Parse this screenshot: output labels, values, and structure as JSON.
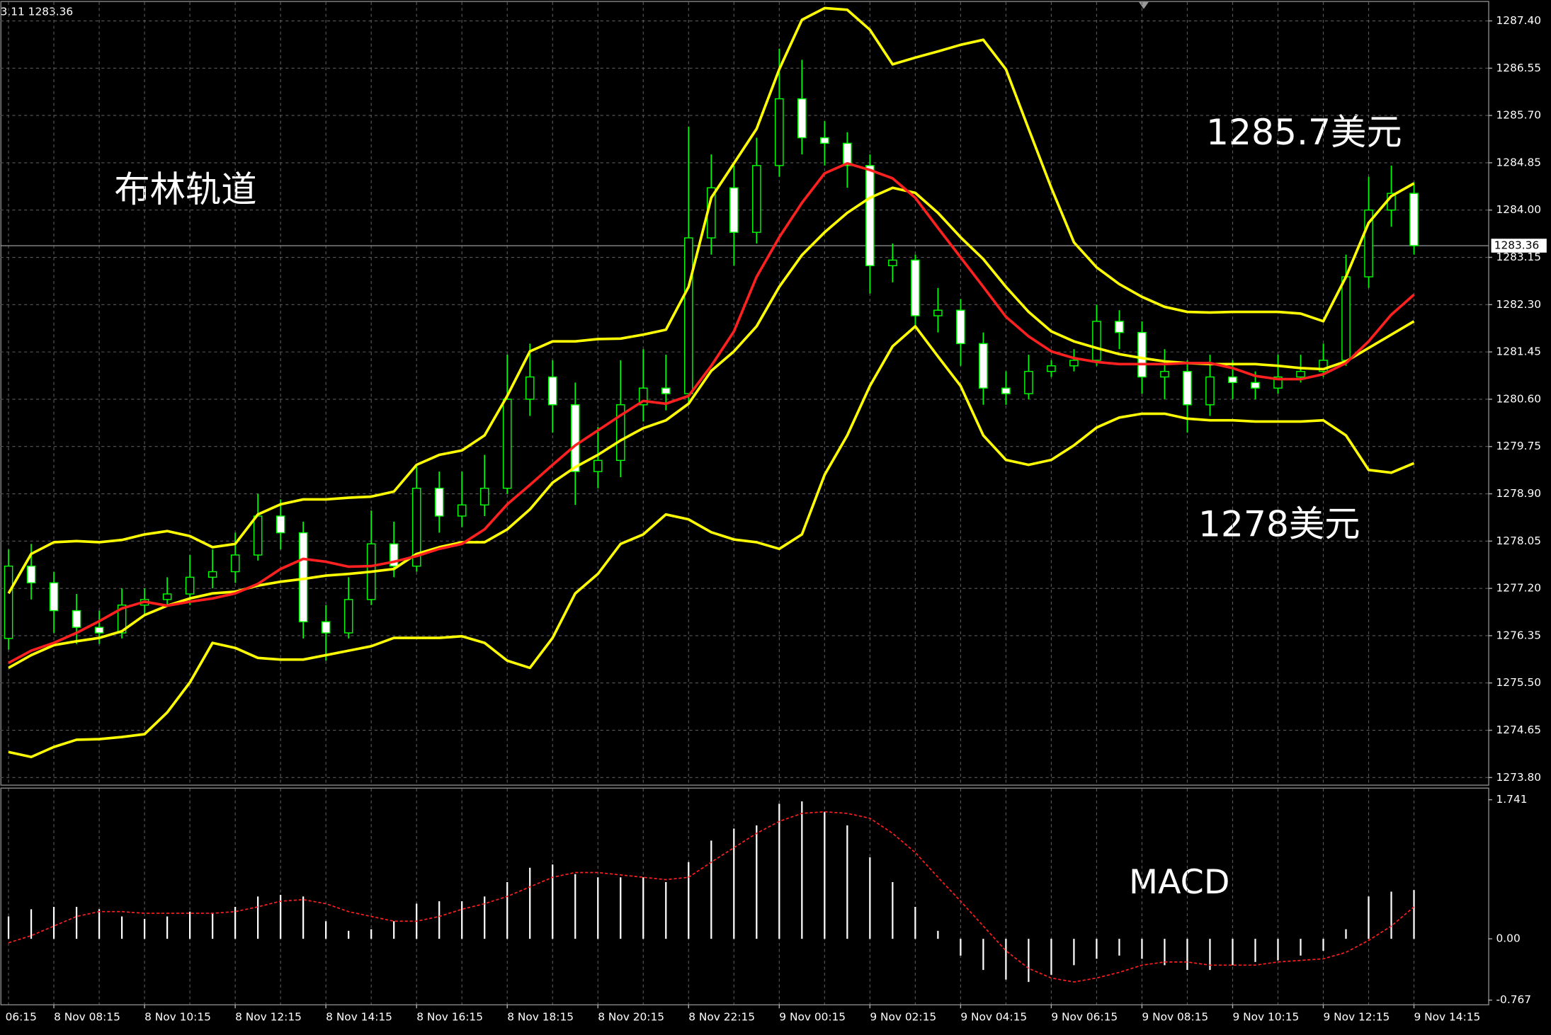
{
  "chart_data": {
    "type": "candlestick",
    "header": "3.11 1283.36",
    "x_axis_left_label": "06:15",
    "categories": [
      null,
      null,
      "8 Nov 08:15",
      null,
      null,
      null,
      "8 Nov 10:15",
      null,
      null,
      null,
      "8 Nov 12:15",
      null,
      null,
      null,
      "8 Nov 14:15",
      null,
      null,
      null,
      "8 Nov 16:15",
      null,
      null,
      null,
      "8 Nov 18:15",
      null,
      null,
      null,
      "8 Nov 20:15",
      null,
      null,
      null,
      "8 Nov 22:15",
      null,
      null,
      null,
      "9 Nov 00:15",
      null,
      null,
      null,
      "9 Nov 02:15",
      null,
      null,
      null,
      "9 Nov 04:15",
      null,
      null,
      null,
      "9 Nov 06:15",
      null,
      null,
      null,
      "9 Nov 08:15",
      null,
      null,
      null,
      "9 Nov 10:15",
      null,
      null,
      null,
      "9 Nov 12:15",
      null,
      null,
      null,
      "9 Nov 14:15"
    ],
    "open": [
      1276.3,
      1277.6,
      1277.3,
      1276.8,
      1276.5,
      1276.4,
      1276.9,
      1277.0,
      1277.1,
      1277.4,
      1277.5,
      1277.8,
      1278.5,
      1278.2,
      1276.6,
      1276.4,
      1277.0,
      1278.0,
      1277.6,
      1279.0,
      1278.5,
      1278.7,
      1279.0,
      1280.6,
      1281.0,
      1280.5,
      1279.3,
      1279.5,
      1280.5,
      1280.8,
      1280.7,
      1283.5,
      1284.4,
      1283.6,
      1284.8,
      1286.0,
      1285.3,
      1285.2,
      1284.8,
      1283.0,
      1283.1,
      1282.1,
      1282.2,
      1281.6,
      1280.8,
      1280.7,
      1281.1,
      1281.2,
      1281.3,
      1282.0,
      1281.8,
      1281.0,
      1281.1,
      1280.5,
      1281.0,
      1280.9,
      1280.8,
      1281.0,
      1281.1,
      1281.3,
      1282.8,
      1284.0,
      1284.3
    ],
    "high": [
      1277.9,
      1278.0,
      1277.5,
      1277.1,
      1276.8,
      1277.2,
      1277.2,
      1277.4,
      1277.8,
      1277.9,
      1278.2,
      1278.9,
      1278.8,
      1278.4,
      1276.9,
      1277.4,
      1278.6,
      1278.4,
      1279.4,
      1279.3,
      1279.3,
      1279.6,
      1281.4,
      1281.6,
      1281.3,
      1280.9,
      1280.1,
      1281.3,
      1281.5,
      1281.4,
      1285.5,
      1285.0,
      1284.8,
      1285.3,
      1286.9,
      1286.7,
      1285.6,
      1285.4,
      1285.0,
      1283.4,
      1283.2,
      1282.6,
      1282.4,
      1281.8,
      1281.1,
      1281.4,
      1281.3,
      1281.5,
      1282.3,
      1282.2,
      1282.0,
      1281.5,
      1281.3,
      1281.4,
      1281.3,
      1281.1,
      1281.4,
      1281.4,
      1281.6,
      1283.2,
      1284.6,
      1284.8,
      1284.5
    ],
    "low": [
      1276.1,
      1277.0,
      1276.4,
      1276.2,
      1276.2,
      1276.3,
      1276.7,
      1276.9,
      1276.9,
      1277.2,
      1277.3,
      1277.7,
      1277.9,
      1276.3,
      1275.9,
      1276.3,
      1276.9,
      1277.4,
      1277.5,
      1278.2,
      1278.3,
      1278.5,
      1278.9,
      1280.3,
      1280.0,
      1278.7,
      1279.0,
      1279.2,
      1280.2,
      1280.4,
      1280.5,
      1283.2,
      1283.0,
      1283.4,
      1284.6,
      1285.0,
      1284.8,
      1284.4,
      1282.5,
      1282.7,
      1281.9,
      1281.8,
      1281.2,
      1280.5,
      1280.5,
      1280.6,
      1281.0,
      1281.1,
      1281.2,
      1281.5,
      1280.7,
      1280.6,
      1280.0,
      1280.3,
      1280.6,
      1280.6,
      1280.7,
      1280.9,
      1281.0,
      1281.2,
      1282.6,
      1283.7,
      1283.2
    ],
    "close": [
      1277.6,
      1277.3,
      1276.8,
      1276.5,
      1276.4,
      1276.9,
      1277.0,
      1277.1,
      1277.4,
      1277.5,
      1277.8,
      1278.5,
      1278.2,
      1276.6,
      1276.4,
      1277.0,
      1278.0,
      1277.6,
      1279.0,
      1278.5,
      1278.7,
      1279.0,
      1280.6,
      1281.0,
      1280.5,
      1279.3,
      1279.5,
      1280.5,
      1280.8,
      1280.7,
      1283.5,
      1284.4,
      1283.6,
      1284.8,
      1286.0,
      1285.3,
      1285.2,
      1284.8,
      1283.0,
      1283.1,
      1282.1,
      1282.2,
      1281.6,
      1280.8,
      1280.7,
      1281.1,
      1281.2,
      1281.3,
      1282.0,
      1281.8,
      1281.0,
      1281.1,
      1280.5,
      1281.0,
      1280.9,
      1280.8,
      1281.0,
      1281.1,
      1281.3,
      1282.8,
      1284.0,
      1284.3,
      1283.36
    ],
    "up_color": "#000000",
    "down_color": "#ffffff",
    "wick_color": "#00ff00",
    "overlays": [
      {
        "color": "#ffff00",
        "values": [
          1277.11,
          1277.82,
          1278.03,
          1278.05,
          1278.03,
          1278.07,
          1278.17,
          1278.23,
          1278.14,
          1277.94,
          1278.0,
          1278.53,
          1278.71,
          1278.8,
          1278.8,
          1278.83,
          1278.85,
          1278.94,
          1279.42,
          1279.6,
          1279.68,
          1279.95,
          1280.66,
          1281.46,
          1281.64,
          1281.64,
          1281.68,
          1281.69,
          1281.76,
          1281.85,
          1282.62,
          1284.22,
          1284.84,
          1285.46,
          1286.53,
          1287.42,
          1287.63,
          1287.6,
          1287.24,
          1286.62,
          1286.74,
          1286.85,
          1286.97,
          1287.06,
          1286.53,
          1285.46,
          1284.4,
          1283.42,
          1282.97,
          1282.67,
          1282.44,
          1282.26,
          1282.17,
          1282.16,
          1282.17,
          1282.17,
          1282.17,
          1282.14,
          1282.0,
          1282.8,
          1283.77,
          1284.25,
          1284.48
        ]
      },
      {
        "color": "#ffff00",
        "values": [
          1275.77,
          1276.0,
          1276.18,
          1276.25,
          1276.31,
          1276.43,
          1276.72,
          1276.89,
          1277.02,
          1277.11,
          1277.14,
          1277.25,
          1277.32,
          1277.37,
          1277.43,
          1277.46,
          1277.5,
          1277.55,
          1277.82,
          1277.94,
          1278.03,
          1278.03,
          1278.26,
          1278.62,
          1279.1,
          1279.38,
          1279.6,
          1279.86,
          1280.08,
          1280.22,
          1280.52,
          1281.11,
          1281.46,
          1281.91,
          1282.62,
          1283.19,
          1283.6,
          1283.95,
          1284.22,
          1284.4,
          1284.31,
          1283.95,
          1283.51,
          1283.12,
          1282.62,
          1282.17,
          1281.82,
          1281.64,
          1281.52,
          1281.41,
          1281.34,
          1281.28,
          1281.25,
          1281.23,
          1281.23,
          1281.23,
          1281.2,
          1281.16,
          1281.14,
          1281.28,
          1281.52,
          1281.76,
          1282.0
        ]
      },
      {
        "color": "#ffff00",
        "values": [
          1274.26,
          1274.17,
          1274.35,
          1274.48,
          1274.49,
          1274.53,
          1274.58,
          1274.97,
          1275.51,
          1276.22,
          1276.13,
          1275.95,
          1275.92,
          1275.92,
          1276.0,
          1276.08,
          1276.16,
          1276.31,
          1276.31,
          1276.31,
          1276.34,
          1276.22,
          1275.9,
          1275.77,
          1276.31,
          1277.11,
          1277.46,
          1278.0,
          1278.17,
          1278.53,
          1278.44,
          1278.21,
          1278.08,
          1278.03,
          1277.91,
          1278.17,
          1279.24,
          1279.95,
          1280.84,
          1281.55,
          1281.91,
          1281.37,
          1280.84,
          1279.95,
          1279.51,
          1279.42,
          1279.51,
          1279.77,
          1280.09,
          1280.27,
          1280.34,
          1280.34,
          1280.25,
          1280.22,
          1280.22,
          1280.2,
          1280.2,
          1280.2,
          1280.22,
          1279.95,
          1279.33,
          1279.28,
          1279.45
        ]
      },
      {
        "color": "#ff2020",
        "values": [
          1275.86,
          1276.08,
          1276.22,
          1276.4,
          1276.61,
          1276.84,
          1276.96,
          1276.89,
          1276.96,
          1277.02,
          1277.11,
          1277.28,
          1277.55,
          1277.73,
          1277.68,
          1277.59,
          1277.6,
          1277.68,
          1277.78,
          1277.91,
          1278.0,
          1278.26,
          1278.71,
          1279.06,
          1279.42,
          1279.77,
          1280.04,
          1280.31,
          1280.57,
          1280.52,
          1280.66,
          1281.2,
          1281.82,
          1282.8,
          1283.51,
          1284.13,
          1284.66,
          1284.84,
          1284.72,
          1284.57,
          1284.22,
          1283.68,
          1283.15,
          1282.62,
          1282.08,
          1281.73,
          1281.46,
          1281.34,
          1281.27,
          1281.23,
          1281.23,
          1281.23,
          1281.25,
          1281.25,
          1281.16,
          1281.02,
          1280.96,
          1280.96,
          1281.05,
          1281.25,
          1281.64,
          1282.12,
          1282.48
        ]
      }
    ],
    "ylim": [
      1273.69,
      1287.74
    ],
    "yticks": [
      {
        "value": 1287.4,
        "label": "1287.40"
      },
      1286.55,
      {
        "value": 1285.7,
        "label": "1285.70"
      },
      1284.85,
      {
        "value": 1284,
        "label": "1284.00"
      },
      1283.15,
      {
        "value": 1282.3,
        "label": "1282.30"
      },
      1281.45,
      {
        "value": 1280.6,
        "label": "1280.60"
      },
      1279.75,
      {
        "value": 1278.9,
        "label": "1278.90"
      },
      1278.05,
      {
        "value": 1277.2,
        "label": "1277.20"
      },
      1276.35,
      {
        "value": 1275.5,
        "label": "1275.50"
      },
      1274.65,
      {
        "value": 1273.8,
        "label": "1273.80"
      }
    ],
    "current_price": 1283.36,
    "grid": true,
    "annotations": [
      "布林轨道",
      "1285.7美元",
      "1278美元",
      "MACD"
    ],
    "macd": {
      "ylim": [
        -0.82,
        1.88
      ],
      "yticks": [
        1.741,
        {
          "value": 0,
          "label": "0.00"
        },
        -0.767
      ],
      "histogram": {
        "color": "#ffffff",
        "values": [
          0.28,
          0.37,
          0.4,
          0.4,
          0.37,
          0.28,
          0.25,
          0.28,
          0.34,
          0.32,
          0.4,
          0.53,
          0.55,
          0.53,
          0.22,
          0.1,
          0.12,
          0.22,
          0.44,
          0.47,
          0.47,
          0.53,
          0.71,
          0.89,
          0.93,
          0.81,
          0.77,
          0.77,
          0.77,
          0.71,
          0.96,
          1.23,
          1.38,
          1.42,
          1.69,
          1.72,
          1.59,
          1.42,
          1.02,
          0.71,
          0.4,
          0.1,
          -0.21,
          -0.39,
          -0.51,
          -0.54,
          -0.45,
          -0.33,
          -0.25,
          -0.21,
          -0.25,
          -0.33,
          -0.39,
          -0.39,
          -0.33,
          -0.29,
          -0.27,
          -0.21,
          -0.15,
          0.12,
          0.53,
          0.59,
          0.61
        ]
      },
      "signal": {
        "color": "#ff2020",
        "values": [
          -0.05,
          0.04,
          0.16,
          0.28,
          0.34,
          0.34,
          0.32,
          0.32,
          0.32,
          0.32,
          0.34,
          0.4,
          0.47,
          0.49,
          0.44,
          0.34,
          0.28,
          0.22,
          0.22,
          0.28,
          0.37,
          0.44,
          0.53,
          0.65,
          0.77,
          0.83,
          0.83,
          0.8,
          0.77,
          0.74,
          0.77,
          0.96,
          1.14,
          1.32,
          1.47,
          1.57,
          1.59,
          1.57,
          1.51,
          1.32,
          1.08,
          0.77,
          0.47,
          0.16,
          -0.15,
          -0.37,
          -0.49,
          -0.54,
          -0.49,
          -0.42,
          -0.33,
          -0.29,
          -0.29,
          -0.33,
          -0.33,
          -0.33,
          -0.29,
          -0.27,
          -0.25,
          -0.17,
          -0.02,
          0.16,
          0.4
        ]
      }
    }
  }
}
